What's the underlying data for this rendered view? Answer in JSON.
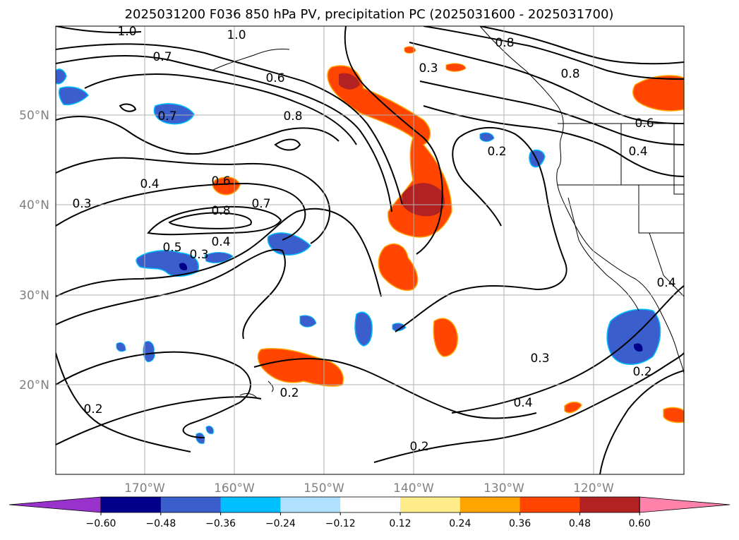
{
  "title": "2025031200 F036 850 hPa PV, precipitation PC (2025031600 - 2025031700)",
  "lat_labels": [
    "50°N",
    "40°N",
    "30°N",
    "20°N"
  ],
  "lon_labels": [
    "170°W",
    "160°W",
    "150°W",
    "140°W",
    "130°W",
    "120°W"
  ],
  "contour_labels": [
    "1.0",
    "1.0",
    "0.8",
    "0.7",
    "0.6",
    "0.7",
    "0.8",
    "0.4",
    "0.3",
    "0.6",
    "0.8",
    "0.7",
    "0.5",
    "0.4",
    "0.3",
    "0.3",
    "0.8",
    "0.2",
    "0.6",
    "0.4",
    "0.4",
    "0.3",
    "0.2",
    "0.2",
    "0.4",
    "0.2",
    "0.2"
  ],
  "colorbar": {
    "ticks": [
      "−0.60",
      "−0.48",
      "−0.36",
      "−0.24",
      "−0.12",
      "0.12",
      "0.24",
      "0.36",
      "0.48",
      "0.60"
    ],
    "colors": [
      "#9932cc",
      "#00008b",
      "#3a5fcd",
      "#00bfff",
      "#b0e2ff",
      "#ffffff",
      "#ffec8b",
      "#ffa500",
      "#ff4500",
      "#b22222",
      "#ff82ab"
    ]
  },
  "colors": {
    "grid": "#b0b0b0",
    "contour": "#000000",
    "axis_label": "#808080"
  }
}
